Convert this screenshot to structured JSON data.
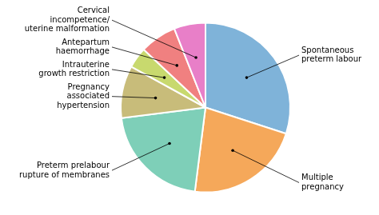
{
  "chart_data": {
    "type": "pie",
    "categories": [
      "Spontaneous\npreterm labour",
      "Multiple\npregnancy",
      "Preterm prelabour\nrupture of membranes",
      "Pregnancy\nassociated\nhypertension",
      "Intrauterine\ngrowth restriction",
      "Antepartum\nhaemorrhage",
      "Cervical\nincompetence/\nuterine malformation"
    ],
    "values": [
      30,
      22,
      21,
      10,
      4,
      7,
      6
    ],
    "colors": [
      "#7fb3d9",
      "#f5a85a",
      "#7ecfb8",
      "#c8bc7a",
      "#c8d96e",
      "#f08080",
      "#e87fc8"
    ]
  }
}
